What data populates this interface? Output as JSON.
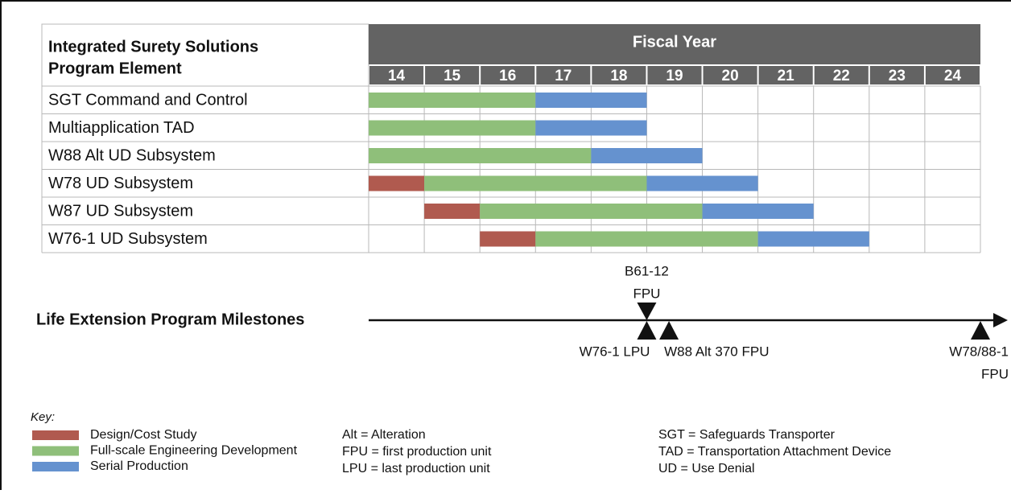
{
  "chart_data": {
    "type": "gantt",
    "header_title": [
      "Integrated Surety Solutions",
      "Program Element"
    ],
    "column_title": "Fiscal Year",
    "categories": [
      "SGT Command and Control",
      "Multiapplication TAD",
      "W88 Alt UD Subsystem",
      "W78 UD Subsystem",
      "W87 UD Subsystem",
      "W76-1 UD Subsystem"
    ],
    "xlim": [
      14,
      25
    ],
    "xticks": [
      14,
      15,
      16,
      17,
      18,
      19,
      20,
      21,
      22,
      23,
      24
    ],
    "series": [
      {
        "name": "Design/Cost Study",
        "color": "#b05a4f",
        "values": [
          null,
          null,
          null,
          [
            14,
            15
          ],
          [
            15,
            16
          ],
          [
            16,
            17
          ]
        ]
      },
      {
        "name": "Full-scale Engineering Development",
        "color": "#8fbf7a",
        "values": [
          [
            14,
            17
          ],
          [
            14,
            17
          ],
          [
            14,
            18
          ],
          [
            15,
            19
          ],
          [
            16,
            20
          ],
          [
            17,
            21
          ]
        ]
      },
      {
        "name": "Serial Production",
        "color": "#6592cf",
        "values": [
          [
            17,
            19
          ],
          [
            17,
            19
          ],
          [
            18,
            20
          ],
          [
            19,
            21
          ],
          [
            20,
            22
          ],
          [
            21,
            23
          ]
        ]
      }
    ],
    "milestones_title": "Life Extension Program Milestones",
    "milestones": [
      {
        "label": [
          "B61-12",
          "FPU"
        ],
        "x": 19,
        "side": "above"
      },
      {
        "label": [
          "W76-1 LPU"
        ],
        "x": 19,
        "side": "below"
      },
      {
        "label": [
          "W88 Alt 370 FPU"
        ],
        "x": 19.4,
        "side": "below"
      },
      {
        "label": [
          "W78/88-1",
          "FPU"
        ],
        "x": 25,
        "side": "below"
      }
    ],
    "key_title": "Key:",
    "abbreviations": [
      [
        "Alt = Alteration",
        "FPU = first production unit",
        "LPU = last production unit"
      ],
      [
        "SGT = Safeguards Transporter",
        "TAD = Transportation Attachment Device",
        "UD = Use Denial"
      ]
    ]
  }
}
